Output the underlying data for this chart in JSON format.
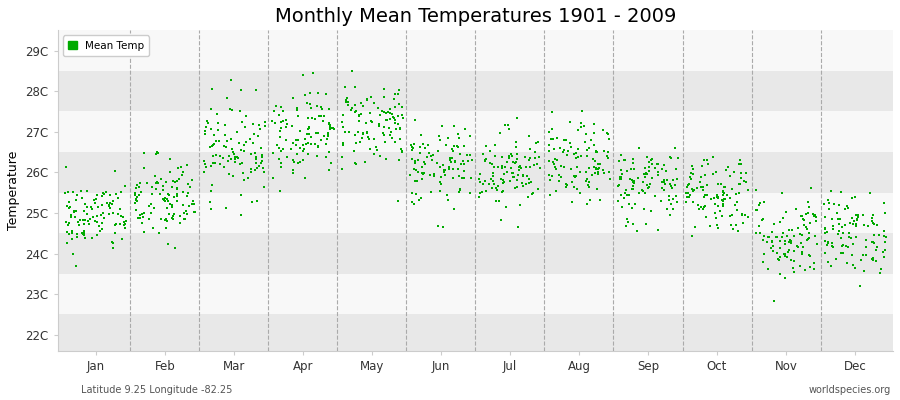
{
  "title": "Monthly Mean Temperatures 1901 - 2009",
  "ylabel": "Temperature",
  "subtitle_left": "Latitude 9.25 Longitude -82.25",
  "subtitle_right": "worldspecies.org",
  "ytick_labels": [
    "22C",
    "23C",
    "24C",
    "25C",
    "26C",
    "27C",
    "28C",
    "29C"
  ],
  "ytick_values": [
    22,
    23,
    24,
    25,
    26,
    27,
    28,
    29
  ],
  "ylim": [
    21.6,
    29.5
  ],
  "months": [
    "Jan",
    "Feb",
    "Mar",
    "Apr",
    "May",
    "Jun",
    "Jul",
    "Aug",
    "Sep",
    "Oct",
    "Nov",
    "Dec"
  ],
  "dot_color": "#00aa00",
  "bg_color": "#f2f2f2",
  "plot_bg_color": "#f2f2f2",
  "legend_label": "Mean Temp",
  "mean_temps": [
    24.9,
    25.3,
    26.6,
    27.0,
    27.2,
    26.1,
    26.1,
    26.2,
    25.7,
    25.5,
    24.4,
    24.5
  ],
  "std_temps": [
    0.45,
    0.55,
    0.6,
    0.55,
    0.55,
    0.5,
    0.5,
    0.5,
    0.5,
    0.5,
    0.55,
    0.5
  ],
  "seed": 42,
  "n_years": 109,
  "title_fontsize": 14,
  "axis_fontsize": 8.5,
  "label_fontsize": 9,
  "band_colors": [
    "#e8e8e8",
    "#f8f8f8"
  ],
  "dashed_color": "#aaaaaa",
  "fig_facecolor": "#ffffff"
}
